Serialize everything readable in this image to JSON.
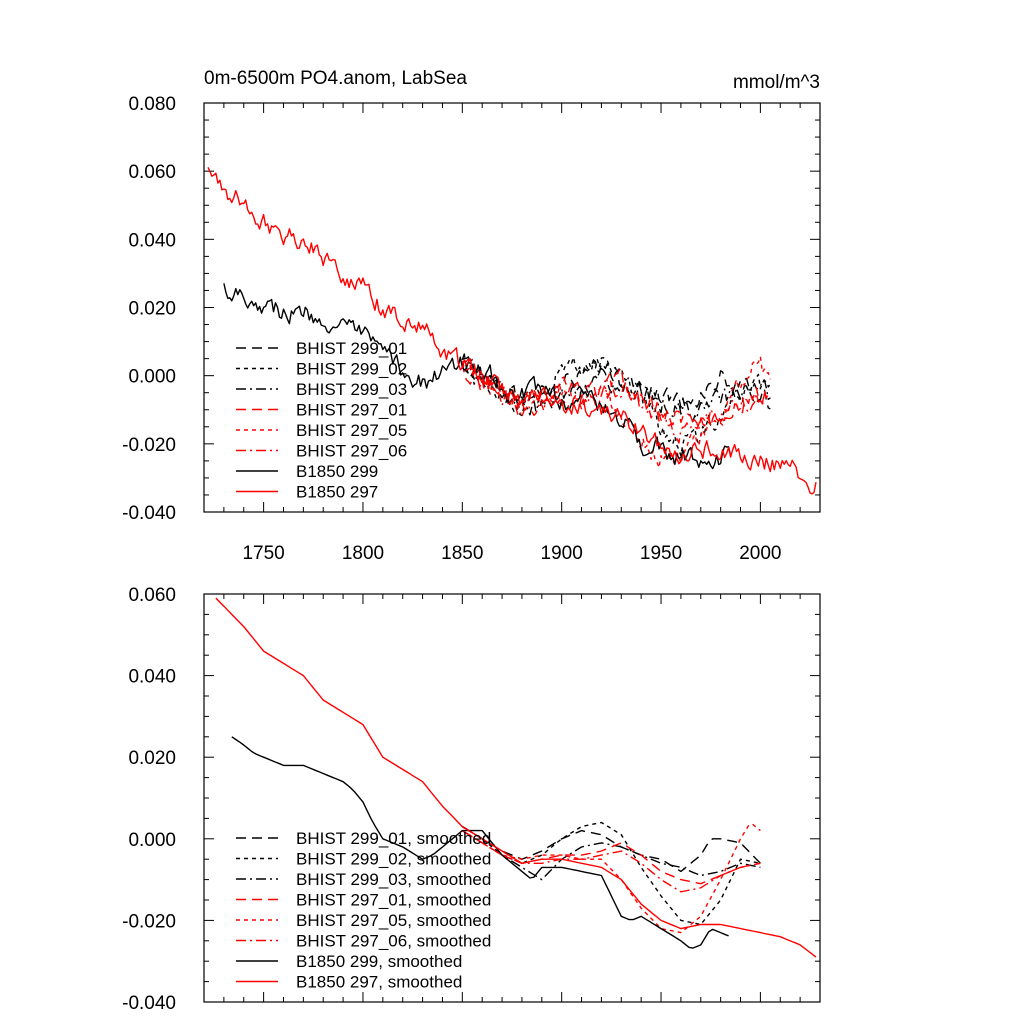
{
  "chart_data": [
    {
      "type": "line",
      "title": "0m-6500m PO4.anom, LabSea",
      "units": "mmol/m^3",
      "xlim": [
        1720,
        2030
      ],
      "ylim": [
        -0.04,
        0.08
      ],
      "yticks": [
        -0.04,
        -0.02,
        0.0,
        0.02,
        0.04,
        0.06,
        0.08
      ],
      "ytick_labels": [
        "-0.040",
        "-0.020",
        "0.000",
        "0.020",
        "0.040",
        "0.060",
        "0.080"
      ],
      "xticks": [
        1750,
        1800,
        1850,
        1900,
        1950,
        2000
      ],
      "xtick_labels": [
        "1750",
        "1800",
        "1850",
        "1900",
        "1950",
        "2000"
      ],
      "show_xtick_labels": true,
      "noise": 0.0025,
      "legend_position": "lower-left",
      "series": [
        {
          "name": "BHIST 299_01",
          "color": "#000000",
          "dash": "long-dash",
          "x": [
            1850,
            1860,
            1870,
            1880,
            1890,
            1900,
            1910,
            1920,
            1930,
            1940,
            1950,
            1960,
            1970,
            1980,
            1990,
            2000,
            2005
          ],
          "y": [
            0.004,
            0.0,
            -0.004,
            -0.008,
            -0.006,
            -0.002,
            0.0,
            0.002,
            -0.002,
            -0.004,
            -0.006,
            -0.008,
            -0.005,
            -0.001,
            -0.004,
            -0.006,
            -0.008
          ]
        },
        {
          "name": "BHIST 299_02",
          "color": "#000000",
          "dash": "short-dash",
          "x": [
            1850,
            1860,
            1870,
            1880,
            1890,
            1900,
            1910,
            1920,
            1930,
            1940,
            1950,
            1960,
            1970,
            1980,
            1990,
            2000,
            2005
          ],
          "y": [
            0.003,
            -0.002,
            -0.006,
            -0.008,
            -0.004,
            0.002,
            0.003,
            0.004,
            0.002,
            -0.006,
            -0.015,
            -0.02,
            -0.018,
            -0.01,
            -0.005,
            -0.004,
            -0.006
          ]
        },
        {
          "name": "BHIST 299_03",
          "color": "#000000",
          "dash": "dash-dot",
          "x": [
            1850,
            1860,
            1870,
            1880,
            1890,
            1900,
            1910,
            1920,
            1930,
            1940,
            1950,
            1960,
            1970,
            1980,
            1990,
            2000,
            2005
          ],
          "y": [
            0.004,
            0.0,
            -0.004,
            -0.009,
            -0.01,
            -0.006,
            -0.002,
            -0.001,
            -0.003,
            -0.005,
            -0.008,
            -0.01,
            -0.01,
            -0.007,
            -0.005,
            -0.004,
            -0.006
          ]
        },
        {
          "name": "BHIST 297_01",
          "color": "#ff0000",
          "dash": "long-dash",
          "x": [
            1850,
            1860,
            1870,
            1880,
            1890,
            1900,
            1910,
            1920,
            1930,
            1940,
            1950,
            1960,
            1970,
            1980,
            1990,
            2000,
            2005
          ],
          "y": [
            0.003,
            -0.002,
            -0.005,
            -0.008,
            -0.006,
            -0.004,
            -0.005,
            -0.004,
            -0.002,
            -0.006,
            -0.01,
            -0.012,
            -0.014,
            -0.012,
            -0.008,
            -0.005,
            -0.004
          ]
        },
        {
          "name": "BHIST 297_05",
          "color": "#ff0000",
          "dash": "short-dash",
          "x": [
            1850,
            1860,
            1870,
            1880,
            1890,
            1900,
            1910,
            1920,
            1930,
            1940,
            1950,
            1960,
            1970,
            1980,
            1990,
            1995,
            2000,
            2005
          ],
          "y": [
            0.003,
            -0.001,
            -0.005,
            -0.007,
            -0.005,
            -0.004,
            -0.006,
            -0.005,
            -0.01,
            -0.018,
            -0.024,
            -0.023,
            -0.02,
            -0.012,
            -0.003,
            0.004,
            0.004,
            -0.004
          ]
        },
        {
          "name": "BHIST 297_06",
          "color": "#ff0000",
          "dash": "dash-dot",
          "x": [
            1850,
            1860,
            1870,
            1880,
            1890,
            1900,
            1910,
            1920,
            1930,
            1940,
            1950,
            1960,
            1970,
            1980,
            1990,
            2000,
            2005
          ],
          "y": [
            0.003,
            -0.002,
            -0.006,
            -0.009,
            -0.008,
            -0.006,
            -0.007,
            -0.006,
            -0.004,
            -0.008,
            -0.012,
            -0.016,
            -0.014,
            -0.01,
            -0.008,
            -0.006,
            -0.005
          ]
        },
        {
          "name": "B1850 299",
          "color": "#000000",
          "dash": "solid",
          "x": [
            1730,
            1740,
            1750,
            1760,
            1770,
            1780,
            1790,
            1800,
            1810,
            1820,
            1830,
            1840,
            1850,
            1860,
            1870,
            1880,
            1890,
            1900,
            1910,
            1920,
            1930,
            1940,
            1950,
            1960,
            1970,
            1980,
            1985
          ],
          "y": [
            0.026,
            0.024,
            0.021,
            0.019,
            0.018,
            0.017,
            0.013,
            0.012,
            0.006,
            0.002,
            -0.002,
            0.0,
            0.004,
            0.002,
            -0.003,
            -0.006,
            -0.004,
            -0.008,
            -0.006,
            -0.01,
            -0.012,
            -0.02,
            -0.022,
            -0.024,
            -0.026,
            -0.024,
            -0.024
          ]
        },
        {
          "name": "B1850 297",
          "color": "#ff0000",
          "dash": "solid",
          "x": [
            1722,
            1730,
            1740,
            1750,
            1760,
            1770,
            1780,
            1790,
            1800,
            1810,
            1820,
            1830,
            1840,
            1850,
            1860,
            1870,
            1880,
            1890,
            1900,
            1910,
            1920,
            1930,
            1940,
            1950,
            1960,
            1970,
            1980,
            1990,
            2000,
            2010,
            2020,
            2028
          ],
          "y": [
            0.06,
            0.055,
            0.05,
            0.045,
            0.042,
            0.04,
            0.035,
            0.03,
            0.026,
            0.02,
            0.017,
            0.014,
            0.008,
            0.003,
            0.0,
            -0.004,
            -0.008,
            -0.006,
            -0.008,
            -0.01,
            -0.012,
            -0.012,
            -0.016,
            -0.02,
            -0.022,
            -0.022,
            -0.022,
            -0.023,
            -0.025,
            -0.026,
            -0.028,
            -0.032
          ]
        }
      ]
    },
    {
      "type": "line",
      "title": "",
      "units": "",
      "xlim": [
        1720,
        2030
      ],
      "ylim": [
        -0.04,
        0.06
      ],
      "yticks": [
        -0.04,
        -0.02,
        0.0,
        0.02,
        0.04,
        0.06
      ],
      "ytick_labels": [
        "-0.040",
        "-0.020",
        "0.000",
        "0.020",
        "0.040",
        "0.060"
      ],
      "xticks": [
        1750,
        1800,
        1850,
        1900,
        1950,
        2000
      ],
      "xtick_labels": [],
      "show_xtick_labels": false,
      "noise": 0,
      "legend_position": "lower-left",
      "series": [
        {
          "name": "BHIST 299_01, smoothed",
          "color": "#000000",
          "dash": "long-dash",
          "x": [
            1850,
            1860,
            1870,
            1880,
            1890,
            1900,
            1910,
            1920,
            1930,
            1940,
            1950,
            1960,
            1970,
            1975,
            1980,
            1990,
            2000
          ],
          "y": [
            0.003,
            0.0,
            -0.003,
            -0.005,
            -0.003,
            0.0,
            0.002,
            0.001,
            -0.002,
            -0.004,
            -0.005,
            -0.008,
            -0.004,
            0.0,
            0.0,
            -0.001,
            -0.006
          ]
        },
        {
          "name": "BHIST 299_02, smoothed",
          "color": "#000000",
          "dash": "short-dash",
          "x": [
            1850,
            1860,
            1870,
            1880,
            1890,
            1900,
            1910,
            1920,
            1930,
            1940,
            1950,
            1960,
            1970,
            1980,
            1990,
            2000
          ],
          "y": [
            0.003,
            0.0,
            -0.004,
            -0.006,
            -0.004,
            0.0,
            0.003,
            0.004,
            0.001,
            -0.007,
            -0.014,
            -0.02,
            -0.021,
            -0.015,
            -0.005,
            -0.006
          ]
        },
        {
          "name": "BHIST 299_03, smoothed",
          "color": "#000000",
          "dash": "dash-dot",
          "x": [
            1850,
            1860,
            1870,
            1880,
            1890,
            1900,
            1910,
            1920,
            1930,
            1940,
            1950,
            1960,
            1970,
            1980,
            1990,
            2000
          ],
          "y": [
            0.003,
            0.0,
            -0.004,
            -0.007,
            -0.01,
            -0.005,
            -0.002,
            -0.001,
            -0.002,
            -0.004,
            -0.006,
            -0.007,
            -0.009,
            -0.008,
            -0.006,
            -0.007
          ]
        },
        {
          "name": "BHIST 297_01, smoothed",
          "color": "#ff0000",
          "dash": "long-dash",
          "x": [
            1850,
            1860,
            1870,
            1880,
            1890,
            1900,
            1910,
            1920,
            1930,
            1940,
            1950,
            1960,
            1970,
            1980,
            1990,
            2000
          ],
          "y": [
            0.002,
            -0.001,
            -0.004,
            -0.006,
            -0.005,
            -0.004,
            -0.004,
            -0.003,
            -0.001,
            -0.004,
            -0.008,
            -0.01,
            -0.011,
            -0.009,
            -0.007,
            -0.006
          ]
        },
        {
          "name": "BHIST 297_05, smoothed",
          "color": "#ff0000",
          "dash": "short-dash",
          "x": [
            1850,
            1860,
            1870,
            1880,
            1890,
            1900,
            1910,
            1920,
            1930,
            1940,
            1950,
            1960,
            1970,
            1980,
            1990,
            1995,
            2000
          ],
          "y": [
            0.002,
            -0.001,
            -0.004,
            -0.005,
            -0.004,
            -0.004,
            -0.005,
            -0.005,
            -0.01,
            -0.017,
            -0.022,
            -0.023,
            -0.019,
            -0.01,
            0.0,
            0.004,
            0.002
          ]
        },
        {
          "name": "BHIST 297_06, smoothed",
          "color": "#ff0000",
          "dash": "dash-dot",
          "x": [
            1850,
            1860,
            1870,
            1880,
            1890,
            1900,
            1910,
            1920,
            1930,
            1940,
            1950,
            1960,
            1970,
            1980,
            1990,
            2000
          ],
          "y": [
            0.002,
            -0.001,
            -0.004,
            -0.006,
            -0.006,
            -0.005,
            -0.005,
            -0.004,
            -0.003,
            -0.006,
            -0.01,
            -0.013,
            -0.012,
            -0.009,
            -0.007,
            -0.006
          ]
        },
        {
          "name": "B1850 299, smoothed",
          "color": "#000000",
          "dash": "solid",
          "x": [
            1734,
            1740,
            1745,
            1750,
            1760,
            1770,
            1780,
            1790,
            1795,
            1800,
            1805,
            1810,
            1820,
            1830,
            1835,
            1840,
            1850,
            1860,
            1870,
            1880,
            1885,
            1890,
            1900,
            1910,
            1920,
            1930,
            1935,
            1940,
            1950,
            1960,
            1965,
            1970,
            1975,
            1980,
            1985
          ],
          "y": [
            0.025,
            0.023,
            0.021,
            0.02,
            0.018,
            0.018,
            0.016,
            0.014,
            0.012,
            0.009,
            0.004,
            0.0,
            -0.002,
            -0.005,
            -0.004,
            -0.002,
            0.002,
            0.002,
            -0.004,
            -0.008,
            -0.01,
            -0.007,
            -0.007,
            -0.008,
            -0.009,
            -0.019,
            -0.02,
            -0.019,
            -0.022,
            -0.025,
            -0.027,
            -0.026,
            -0.022,
            -0.023,
            -0.024
          ]
        },
        {
          "name": "B1850 297, smoothed",
          "color": "#ff0000",
          "dash": "solid",
          "x": [
            1726,
            1730,
            1740,
            1750,
            1760,
            1770,
            1780,
            1790,
            1800,
            1810,
            1820,
            1830,
            1840,
            1850,
            1860,
            1870,
            1880,
            1890,
            1900,
            1910,
            1920,
            1930,
            1940,
            1950,
            1960,
            1970,
            1980,
            1990,
            2000,
            2010,
            2020,
            2028
          ],
          "y": [
            0.059,
            0.057,
            0.052,
            0.046,
            0.043,
            0.04,
            0.034,
            0.031,
            0.028,
            0.02,
            0.017,
            0.014,
            0.008,
            0.003,
            0.0,
            -0.003,
            -0.006,
            -0.005,
            -0.005,
            -0.006,
            -0.007,
            -0.01,
            -0.016,
            -0.02,
            -0.022,
            -0.021,
            -0.021,
            -0.022,
            -0.023,
            -0.024,
            -0.026,
            -0.029
          ]
        }
      ]
    }
  ]
}
